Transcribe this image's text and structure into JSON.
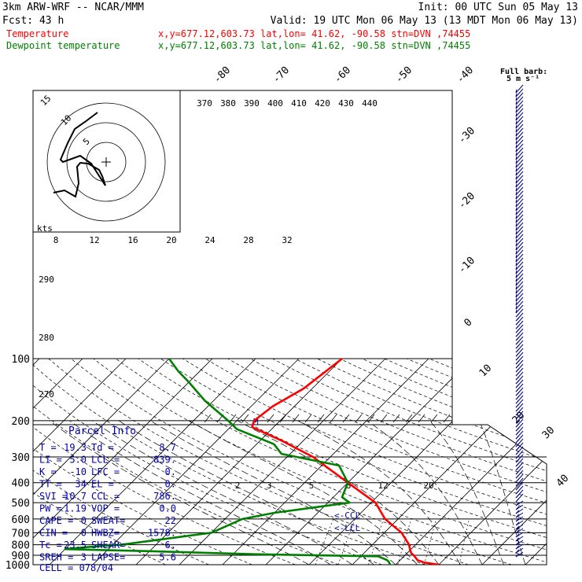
{
  "header": {
    "model": "3km ARW-WRF -- NCAR/MMM",
    "init": "Init: 00 UTC Sun 05 May 13",
    "fcst": "Fcst:   43 h",
    "valid": "Valid: 19 UTC Mon 06 May 13 (13 MDT Mon 06 May 13)",
    "temp_label": "Temperature",
    "dew_label": "Dewpoint temperature",
    "location": "x,y=677.12,603.73   lat,lon= 41.62, -90.58  stn=DVN ,74455"
  },
  "colors": {
    "temperature": "#ff0000",
    "dewpoint": "#008000",
    "winds": "#000080",
    "parcel": "#0000aa"
  },
  "wind_legend": {
    "line1": "Full barb:",
    "line2": "5 m s⁻¹"
  },
  "hodograph": {
    "units": "kts",
    "rings": [
      "5",
      "10",
      "15"
    ]
  },
  "chart_data": {
    "type": "line",
    "title": "",
    "y_axis": {
      "scale": "log",
      "units": "hPa",
      "range": [
        1000,
        100
      ],
      "ticks": [
        "100",
        "200",
        "300",
        "400",
        "500",
        "600",
        "700",
        "800",
        "900",
        "1000"
      ]
    },
    "isotherm_labels": [
      "-80",
      "-70",
      "-60",
      "-50",
      "-40",
      "-30",
      "-20",
      "-10",
      "0",
      "10",
      "20",
      "30",
      "40"
    ],
    "theta_labels": [
      "370",
      "380",
      "390",
      "400",
      "410",
      "420",
      "430",
      "440"
    ],
    "theta_e_labels": [
      "290",
      "280",
      "270"
    ],
    "mixing_ratio_labels": [
      "2",
      "3",
      "5",
      "8",
      "12",
      "20"
    ],
    "hodo_speed_labels": [
      "8",
      "12",
      "16",
      "20",
      "24",
      "28",
      "32"
    ],
    "series": [
      {
        "name": "Temperature",
        "points": [
          [
            1000,
            20
          ],
          [
            975,
            16
          ],
          [
            950,
            14
          ],
          [
            925,
            13
          ],
          [
            900,
            12
          ],
          [
            880,
            11
          ],
          [
            850,
            10
          ],
          [
            800,
            8.5
          ],
          [
            700,
            4
          ],
          [
            600,
            -3
          ],
          [
            500,
            -9
          ],
          [
            400,
            -20
          ],
          [
            300,
            -34
          ],
          [
            250,
            -45
          ],
          [
            215,
            -55
          ],
          [
            200,
            -56
          ],
          [
            170,
            -55
          ],
          [
            140,
            -52
          ],
          [
            100,
            -50
          ]
        ]
      },
      {
        "name": "Dewpoint",
        "points": [
          [
            1000,
            8.7
          ],
          [
            975,
            8
          ],
          [
            950,
            7
          ],
          [
            910,
            4
          ],
          [
            890,
            -25
          ],
          [
            860,
            -50
          ],
          [
            840,
            -70
          ],
          [
            820,
            -65
          ],
          [
            800,
            -58
          ],
          [
            700,
            -40
          ],
          [
            600,
            -36
          ],
          [
            560,
            -30
          ],
          [
            500,
            -15
          ],
          [
            470,
            -18
          ],
          [
            400,
            -20
          ],
          [
            330,
            -26
          ],
          [
            290,
            -42
          ],
          [
            260,
            -46
          ],
          [
            220,
            -58
          ],
          [
            200,
            -62
          ],
          [
            160,
            -72
          ],
          [
            130,
            -80
          ],
          [
            115,
            -85
          ],
          [
            100,
            -90
          ]
        ]
      }
    ],
    "annotations": [
      "<-CCL",
      "<-LCL",
      "M"
    ]
  },
  "parcel_info": {
    "title": "Parcel Info",
    "rows": [
      [
        "T  =",
        "19.3",
        "Td =",
        "8.7"
      ],
      [
        "LI =",
        "5.0",
        "LCL =",
        "839."
      ],
      [
        "K  =",
        "-10",
        "LFC =",
        "0."
      ],
      [
        "TT =",
        "34",
        "EL =",
        "0."
      ],
      [
        "SVI =",
        "10.7",
        "CCL =",
        "786."
      ],
      [
        "PW =",
        "1.19",
        "VOP =",
        "0.0"
      ],
      [
        "CAPE =",
        "0",
        "SWEAT=",
        "22"
      ],
      [
        "CIN =",
        "0",
        "HWBZ=",
        "1578."
      ],
      [
        "Tc =",
        "23.5",
        "SHEAR=",
        "6."
      ],
      [
        "SREH =",
        "3",
        "LAPSE=",
        "5.6"
      ]
    ],
    "cell": "CELL = 078/04"
  }
}
